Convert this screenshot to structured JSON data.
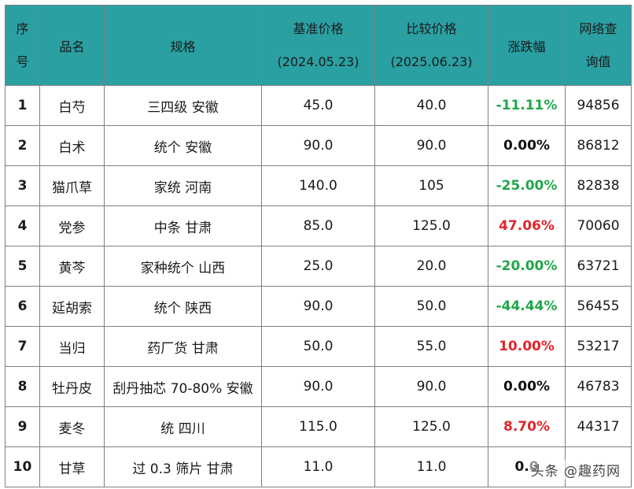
{
  "headers": {
    "index": [
      "序",
      "号"
    ],
    "name": "品名",
    "spec": "规格",
    "base_price": [
      "基准价格",
      "(2024.05.23)"
    ],
    "compare_price": [
      "比较价格",
      "(2025.06.23)"
    ],
    "change": "涨跌幅",
    "query": [
      "网络查",
      "询值"
    ]
  },
  "rows": [
    {
      "index": "1",
      "name": "白芍",
      "spec": "三四级 安徽",
      "base": "45.0",
      "compare": "40.0",
      "change": "-11.11%",
      "trend": "down",
      "query": "94856"
    },
    {
      "index": "2",
      "name": "白术",
      "spec": "统个 安徽",
      "base": "90.0",
      "compare": "90.0",
      "change": "0.00%",
      "trend": "flat",
      "query": "86812"
    },
    {
      "index": "3",
      "name": "猫爪草",
      "spec": "家统 河南",
      "base": "140.0",
      "compare": "105",
      "change": "-25.00%",
      "trend": "down",
      "query": "82838"
    },
    {
      "index": "4",
      "name": "党参",
      "spec": "中条 甘肃",
      "base": "85.0",
      "compare": "125.0",
      "change": "47.06%",
      "trend": "up",
      "query": "70060"
    },
    {
      "index": "5",
      "name": "黄芩",
      "spec": "家种统个 山西",
      "base": "25.0",
      "compare": "20.0",
      "change": "-20.00%",
      "trend": "down",
      "query": "63721"
    },
    {
      "index": "6",
      "name": "延胡索",
      "spec": "统个 陕西",
      "base": "90.0",
      "compare": "50.0",
      "change": "-44.44%",
      "trend": "down",
      "query": "56455"
    },
    {
      "index": "7",
      "name": "当归",
      "spec": "药厂货 甘肃",
      "base": "50.0",
      "compare": "55.0",
      "change": "10.00%",
      "trend": "up",
      "query": "53217"
    },
    {
      "index": "8",
      "name": "牡丹皮",
      "spec": "刮丹抽芯 70-80% 安徽",
      "base": "90.0",
      "compare": "90.0",
      "change": "0.00%",
      "trend": "flat",
      "query": "46783"
    },
    {
      "index": "9",
      "name": "麦冬",
      "spec": "统 四川",
      "base": "115.0",
      "compare": "125.0",
      "change": "8.70%",
      "trend": "up",
      "query": "44317"
    },
    {
      "index": "10",
      "name": "甘草",
      "spec": "过 0.3 筛片 甘肃",
      "base": "11.0",
      "compare": "11.0",
      "change": "0.0",
      "trend": "flat",
      "query": ""
    }
  ],
  "watermark": "头条 @趣药网",
  "colors": {
    "header_bg": "#2aa0a3",
    "down": "#22a64a",
    "up": "#e0262b",
    "flat": "#111111"
  }
}
